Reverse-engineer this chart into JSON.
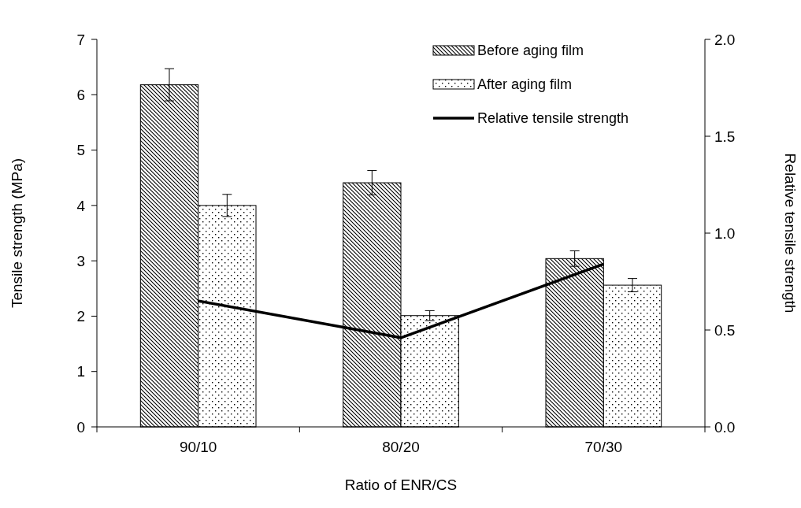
{
  "chart_data": {
    "type": "bar",
    "xlabel": "Ratio of ENR/CS",
    "ylabel": "Tensile strength (MPa)",
    "y2label": "Relative tensile strength",
    "categories": [
      "90/10",
      "80/20",
      "70/30"
    ],
    "series": [
      {
        "name": "Before aging film",
        "color": "#000000",
        "values": [
          6.18,
          4.41,
          3.04
        ],
        "errors": [
          0.29,
          0.22,
          0.14
        ]
      },
      {
        "name": "After aging film",
        "color": "#000000",
        "values": [
          4.0,
          2.01,
          2.56
        ],
        "errors": [
          0.2,
          0.09,
          0.12
        ]
      },
      {
        "name": "Relative tensile strength",
        "type": "line",
        "axis": "y2",
        "color": "#000000",
        "values": [
          0.65,
          0.46,
          0.84
        ]
      }
    ],
    "ylim": [
      0,
      7
    ],
    "yticks": [
      0,
      1,
      2,
      3,
      4,
      5,
      6,
      7
    ],
    "y2lim": [
      0,
      2
    ],
    "y2ticks": [
      {
        "value": 0,
        "label": "0.0"
      },
      {
        "value": 0.5,
        "label": "0.5"
      },
      {
        "value": 1,
        "label": "1.0"
      },
      {
        "value": 1.5,
        "label": "1.5"
      },
      {
        "value": 2,
        "label": "2.0"
      }
    ],
    "legend": "top right",
    "grid": false
  }
}
